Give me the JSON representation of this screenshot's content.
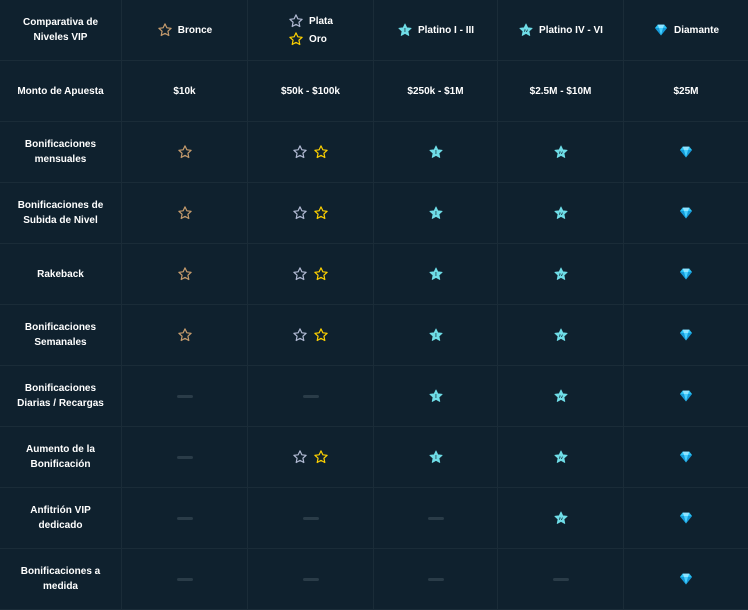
{
  "header": {
    "title": "Comparativa de Niveles VIP",
    "bronze": "Bronce",
    "silver": "Plata",
    "gold": "Oro",
    "platinum1": "Platino I - III",
    "platinum2": "Platino IV - VI",
    "diamond": "Diamante"
  },
  "wager": {
    "label": "Monto de Apuesta",
    "values": [
      "$10k",
      "$50k - $100k",
      "$250k - $1M",
      "$2.5M - $10M",
      "$25M"
    ]
  },
  "rows": [
    {
      "label": "Bonificaciones mensuales",
      "bronze": "bronze-star-icon",
      "silver_gold": "silver-gold-star-icons",
      "platinum1": "platinum-i-icon",
      "platinum2": "platinum-iv-icon",
      "diamond": "diamond-icon"
    },
    {
      "label": "Bonificaciones de Subida de Nivel",
      "bronze": "bronze-star-icon",
      "silver_gold": "silver-gold-star-icons",
      "platinum1": "platinum-i-icon",
      "platinum2": "platinum-iv-icon",
      "diamond": "diamond-icon"
    },
    {
      "label": "Rakeback",
      "bronze": "bronze-star-icon",
      "silver_gold": "silver-gold-star-icons",
      "platinum1": "platinum-i-icon",
      "platinum2": "platinum-iv-icon",
      "diamond": "diamond-icon"
    },
    {
      "label": "Bonificaciones Semanales",
      "bronze": "bronze-star-icon",
      "silver_gold": "silver-gold-star-icons",
      "platinum1": "platinum-i-icon",
      "platinum2": "platinum-iv-icon",
      "diamond": "diamond-icon"
    },
    {
      "label": "Bonificaciones Diarias / Recargas",
      "bronze": "dash",
      "silver_gold": "dash",
      "platinum1": "platinum-i-icon",
      "platinum2": "platinum-iv-icon",
      "diamond": "diamond-icon"
    },
    {
      "label": "Aumento de la Bonificación",
      "bronze": "dash",
      "silver_gold": "silver-gold-star-icons",
      "platinum1": "platinum-i-icon",
      "platinum2": "platinum-iv-icon",
      "diamond": "diamond-icon"
    },
    {
      "label": "Anfitrión VIP dedicado",
      "bronze": "dash",
      "silver_gold": "dash",
      "platinum1": "dash",
      "platinum2": "platinum-iv-icon",
      "diamond": "diamond-icon"
    },
    {
      "label": "Bonificaciones a medida",
      "bronze": "dash",
      "silver_gold": "dash",
      "platinum1": "dash",
      "platinum2": "dash",
      "diamond": "diamond-icon"
    }
  ],
  "colors": {
    "background": "#0f212e",
    "grid_line": "#1a2c38",
    "bronze": "#c69c6d",
    "silver": "#b1bad3",
    "gold": "#fed100",
    "platinum": "#6fdde7",
    "diamond": "#27c2f5",
    "dash": "#2a3c48"
  }
}
